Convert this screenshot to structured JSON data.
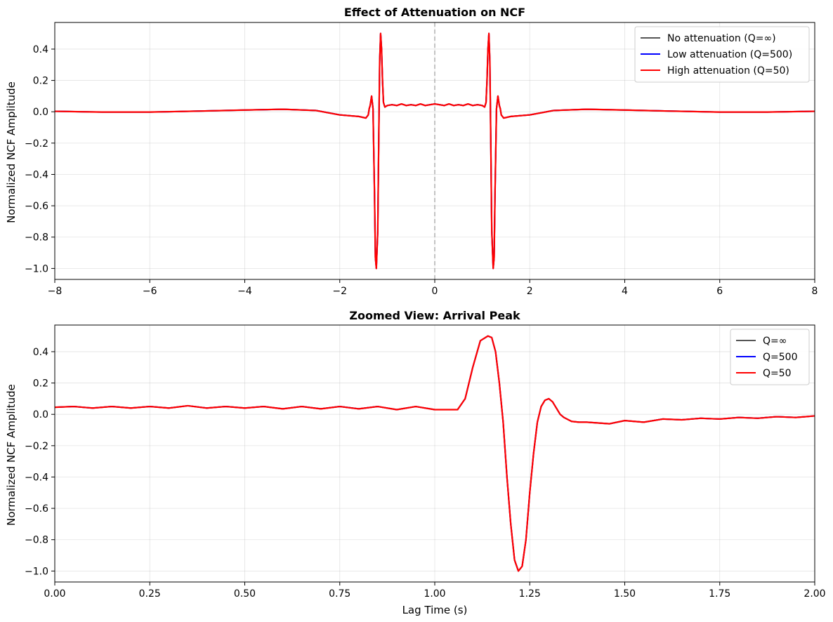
{
  "chart_data": [
    {
      "type": "line",
      "title": "Effect of Attenuation on NCF",
      "xlabel": "",
      "ylabel": "Normalized NCF Amplitude",
      "xlim": [
        -8,
        8
      ],
      "ylim": [
        -1.07,
        0.57
      ],
      "xticks": [
        -8,
        -6,
        -4,
        -2,
        0,
        2,
        4,
        6,
        8
      ],
      "yticks": [
        -1.0,
        -0.8,
        -0.6,
        -0.4,
        -0.2,
        0.0,
        0.2,
        0.4
      ],
      "xtick_labels": [
        "−8",
        "−6",
        "−4",
        "−2",
        "0",
        "2",
        "4",
        "6",
        "8"
      ],
      "ytick_labels": [
        "−1.0",
        "−0.8",
        "−0.6",
        "−0.4",
        "−0.2",
        "0.0",
        "0.2",
        "0.4"
      ],
      "grid": true,
      "legend_position": "top-right",
      "vline": 0,
      "series": [
        {
          "name": "No attenuation (Q=∞)",
          "color": "#555555"
        },
        {
          "name": "Low attenuation (Q=500)",
          "color": "#0000ff"
        },
        {
          "name": "High attenuation (Q=50)",
          "color": "#ff0000"
        }
      ],
      "x": [
        -8,
        -7,
        -6,
        -5,
        -4,
        -3.2,
        -2.5,
        -2,
        -1.6,
        -1.45,
        -1.4,
        -1.38,
        -1.36,
        -1.33,
        -1.3,
        -1.27,
        -1.25,
        -1.23,
        -1.2,
        -1.18,
        -1.16,
        -1.14,
        -1.12,
        -1.1,
        -1.08,
        -1.05,
        -1.0,
        -0.9,
        -0.8,
        -0.7,
        -0.6,
        -0.5,
        -0.4,
        -0.3,
        -0.2,
        -0.1,
        0,
        0.1,
        0.2,
        0.3,
        0.4,
        0.5,
        0.6,
        0.7,
        0.8,
        0.9,
        1.0,
        1.05,
        1.08,
        1.1,
        1.12,
        1.14,
        1.16,
        1.18,
        1.2,
        1.23,
        1.25,
        1.27,
        1.3,
        1.33,
        1.36,
        1.38,
        1.4,
        1.45,
        1.6,
        2,
        2.5,
        3.2,
        4,
        5,
        6,
        7,
        8
      ],
      "y": [
        0.003,
        -0.002,
        -0.002,
        0.004,
        0.011,
        0.016,
        0.008,
        -0.02,
        -0.03,
        -0.04,
        -0.02,
        0.02,
        0.04,
        0.1,
        0.02,
        -0.5,
        -0.93,
        -1.0,
        -0.76,
        -0.2,
        0.32,
        0.5,
        0.4,
        0.2,
        0.06,
        0.03,
        0.04,
        0.045,
        0.04,
        0.05,
        0.04,
        0.045,
        0.04,
        0.05,
        0.04,
        0.045,
        0.05,
        0.045,
        0.04,
        0.05,
        0.04,
        0.045,
        0.04,
        0.05,
        0.04,
        0.045,
        0.04,
        0.03,
        0.06,
        0.2,
        0.4,
        0.5,
        0.32,
        -0.2,
        -0.76,
        -1.0,
        -0.93,
        -0.5,
        0.02,
        0.1,
        0.04,
        0.02,
        -0.02,
        -0.04,
        -0.03,
        -0.02,
        0.008,
        0.016,
        0.011,
        0.004,
        -0.002,
        -0.002,
        0.003
      ]
    },
    {
      "type": "line",
      "title": "Zoomed View: Arrival Peak",
      "xlabel": "Lag Time (s)",
      "ylabel": "Normalized NCF Amplitude",
      "xlim": [
        0,
        2
      ],
      "ylim": [
        -1.07,
        0.57
      ],
      "xticks": [
        0,
        0.25,
        0.5,
        0.75,
        1.0,
        1.25,
        1.5,
        1.75,
        2.0
      ],
      "yticks": [
        -1.0,
        -0.8,
        -0.6,
        -0.4,
        -0.2,
        0.0,
        0.2,
        0.4
      ],
      "xtick_labels": [
        "0.00",
        "0.25",
        "0.50",
        "0.75",
        "1.00",
        "1.25",
        "1.50",
        "1.75",
        "2.00"
      ],
      "ytick_labels": [
        "−1.0",
        "−0.8",
        "−0.6",
        "−0.4",
        "−0.2",
        "0.0",
        "0.2",
        "0.4"
      ],
      "grid": true,
      "legend_position": "top-right",
      "series": [
        {
          "name": "Q=∞",
          "color": "#555555"
        },
        {
          "name": "Q=500",
          "color": "#0000ff"
        },
        {
          "name": "Q=50",
          "color": "#ff0000"
        }
      ],
      "x": [
        0,
        0.05,
        0.1,
        0.15,
        0.2,
        0.25,
        0.3,
        0.35,
        0.4,
        0.45,
        0.5,
        0.55,
        0.6,
        0.65,
        0.7,
        0.75,
        0.8,
        0.85,
        0.9,
        0.95,
        1.0,
        1.03,
        1.06,
        1.08,
        1.1,
        1.12,
        1.14,
        1.15,
        1.16,
        1.17,
        1.18,
        1.19,
        1.2,
        1.21,
        1.22,
        1.23,
        1.24,
        1.25,
        1.26,
        1.27,
        1.28,
        1.29,
        1.3,
        1.31,
        1.32,
        1.33,
        1.34,
        1.36,
        1.38,
        1.4,
        1.43,
        1.46,
        1.5,
        1.55,
        1.6,
        1.65,
        1.7,
        1.75,
        1.8,
        1.85,
        1.9,
        1.95,
        2.0
      ],
      "y": [
        0.045,
        0.05,
        0.04,
        0.05,
        0.04,
        0.05,
        0.04,
        0.055,
        0.04,
        0.05,
        0.04,
        0.05,
        0.035,
        0.05,
        0.035,
        0.05,
        0.035,
        0.05,
        0.03,
        0.05,
        0.03,
        0.03,
        0.03,
        0.1,
        0.3,
        0.47,
        0.5,
        0.49,
        0.4,
        0.2,
        -0.05,
        -0.4,
        -0.7,
        -0.93,
        -1.0,
        -0.97,
        -0.8,
        -0.5,
        -0.25,
        -0.05,
        0.05,
        0.09,
        0.1,
        0.08,
        0.04,
        0.0,
        -0.02,
        -0.045,
        -0.05,
        -0.05,
        -0.055,
        -0.06,
        -0.04,
        -0.05,
        -0.03,
        -0.035,
        -0.025,
        -0.03,
        -0.02,
        -0.025,
        -0.015,
        -0.02,
        -0.01
      ]
    }
  ]
}
